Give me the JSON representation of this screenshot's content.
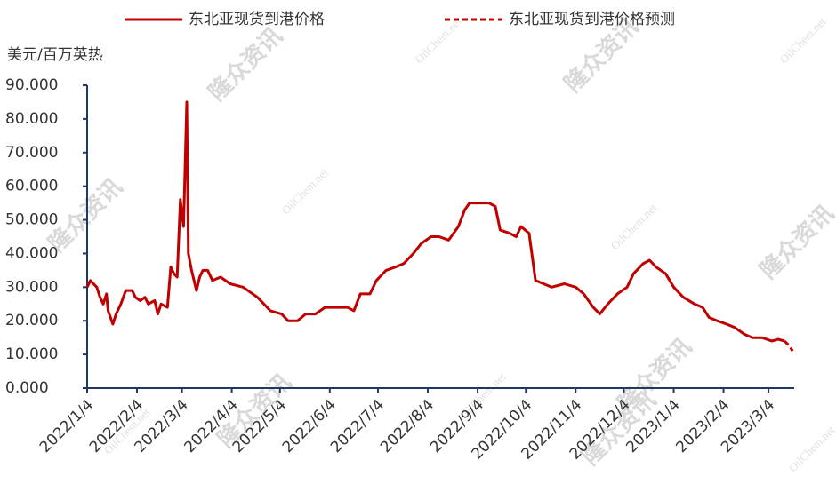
{
  "chart_data": {
    "type": "line",
    "y_label": "美元/百万英热",
    "watermarks": [
      "隆众资讯",
      "OilChem.net"
    ],
    "x": [
      "2022/1/4",
      "2022/1/6",
      "2022/1/10",
      "2022/1/12",
      "2022/1/14",
      "2022/1/16",
      "2022/1/17",
      "2022/1/20",
      "2022/1/22",
      "2022/1/25",
      "2022/1/28",
      "2022/2/1",
      "2022/2/3",
      "2022/2/6",
      "2022/2/9",
      "2022/2/11",
      "2022/2/15",
      "2022/2/17",
      "2022/2/19",
      "2022/2/23",
      "2022/2/25",
      "2022/2/27",
      "2022/3/1",
      "2022/3/3",
      "2022/3/5",
      "2022/3/7",
      "2022/3/8",
      "2022/3/10",
      "2022/3/13",
      "2022/3/15",
      "2022/3/17",
      "2022/3/20",
      "2022/3/23",
      "2022/3/28",
      "2022/4/3",
      "2022/4/11",
      "2022/4/20",
      "2022/4/28",
      "2022/5/5",
      "2022/5/9",
      "2022/5/15",
      "2022/5/20",
      "2022/5/26",
      "2022/6/1",
      "2022/6/9",
      "2022/6/15",
      "2022/6/19",
      "2022/6/23",
      "2022/6/29",
      "2022/7/3",
      "2022/7/9",
      "2022/7/15",
      "2022/7/20",
      "2022/7/26",
      "2022/7/31",
      "2022/8/6",
      "2022/8/11",
      "2022/8/17",
      "2022/8/23",
      "2022/8/27",
      "2022/8/30",
      "2022/9/5",
      "2022/9/11",
      "2022/9/15",
      "2022/9/18",
      "2022/9/24",
      "2022/9/28",
      "2022/10/1",
      "2022/10/6",
      "2022/10/10",
      "2022/10/15",
      "2022/10/20",
      "2022/10/28",
      "2022/11/4",
      "2022/11/9",
      "2022/11/15",
      "2022/11/19",
      "2022/11/24",
      "2022/11/30",
      "2022/12/6",
      "2022/12/10",
      "2022/12/16",
      "2022/12/20",
      "2022/12/24",
      "2022/12/30",
      "2023/1/4",
      "2023/1/10",
      "2023/1/17",
      "2023/1/22",
      "2023/1/26",
      "2023/1/31",
      "2023/2/6",
      "2023/2/11",
      "2023/2/17",
      "2023/2/22",
      "2023/2/28",
      "2023/3/6",
      "2023/3/10",
      "2023/3/14",
      "2023/3/17",
      "2023/3/19"
    ],
    "series": [
      {
        "name": "东北亚现货到港价格",
        "color": "#c00000",
        "dash": false,
        "values": [
          30,
          32,
          30,
          27,
          25,
          28,
          23,
          19,
          22,
          25,
          29,
          29,
          27,
          26,
          27,
          25,
          26,
          22,
          25,
          24,
          36,
          34,
          33,
          56,
          48,
          85,
          40,
          35,
          29,
          33,
          35,
          35,
          32,
          33,
          31,
          30,
          27,
          23,
          22,
          20,
          20,
          22,
          22,
          24,
          24,
          24,
          23,
          28,
          28,
          32,
          35,
          36,
          37,
          40,
          43,
          45,
          45,
          44,
          48,
          53,
          55,
          55,
          55,
          54,
          47,
          46,
          45,
          48,
          46,
          32,
          31,
          30,
          31,
          30,
          28,
          24,
          22,
          25,
          28,
          30,
          34,
          37,
          38,
          36,
          34,
          30,
          27,
          25,
          24,
          21,
          20,
          19,
          18,
          16,
          15,
          15,
          14,
          14.5,
          14,
          null,
          null
        ]
      },
      {
        "name": "东北亚现货到港价格预测",
        "color": "#c00000",
        "dash": true,
        "values": [
          null,
          null,
          null,
          null,
          null,
          null,
          null,
          null,
          null,
          null,
          null,
          null,
          null,
          null,
          null,
          null,
          null,
          null,
          null,
          null,
          null,
          null,
          null,
          null,
          null,
          null,
          null,
          null,
          null,
          null,
          null,
          null,
          null,
          null,
          null,
          null,
          null,
          null,
          null,
          null,
          null,
          null,
          null,
          null,
          null,
          null,
          null,
          null,
          null,
          null,
          null,
          null,
          null,
          null,
          null,
          null,
          null,
          null,
          null,
          null,
          null,
          null,
          null,
          null,
          null,
          null,
          null,
          null,
          null,
          null,
          null,
          null,
          null,
          null,
          null,
          null,
          null,
          null,
          null,
          null,
          null,
          null,
          null,
          null,
          null,
          null,
          null,
          null,
          null,
          null,
          null,
          null,
          null,
          null,
          null,
          null,
          null,
          null,
          14,
          12.5,
          11
        ]
      }
    ],
    "xlim": [
      "2022/1/4",
      "2023/3/20"
    ],
    "xticks": [
      "2022/1/4",
      "2022/2/4",
      "2022/3/4",
      "2022/4/4",
      "2022/5/4",
      "2022/6/4",
      "2022/7/4",
      "2022/8/4",
      "2022/9/4",
      "2022/10/4",
      "2022/11/4",
      "2022/12/4",
      "2023/1/4",
      "2023/2/4",
      "2023/3/4"
    ],
    "ylim": [
      0,
      90
    ],
    "yticks": [
      {
        "value": 0,
        "label": "0.000"
      },
      {
        "value": 10,
        "label": "10.000"
      },
      {
        "value": 20,
        "label": "20.000"
      },
      {
        "value": 30,
        "label": "30.000"
      },
      {
        "value": 40,
        "label": "40.000"
      },
      {
        "value": 50,
        "label": "50.000"
      },
      {
        "value": 60,
        "label": "60.000"
      },
      {
        "value": 70,
        "label": "70.000"
      },
      {
        "value": 80,
        "label": "80.000"
      },
      {
        "value": 90,
        "label": "90.000"
      }
    ],
    "grid": false,
    "legend": "top"
  }
}
